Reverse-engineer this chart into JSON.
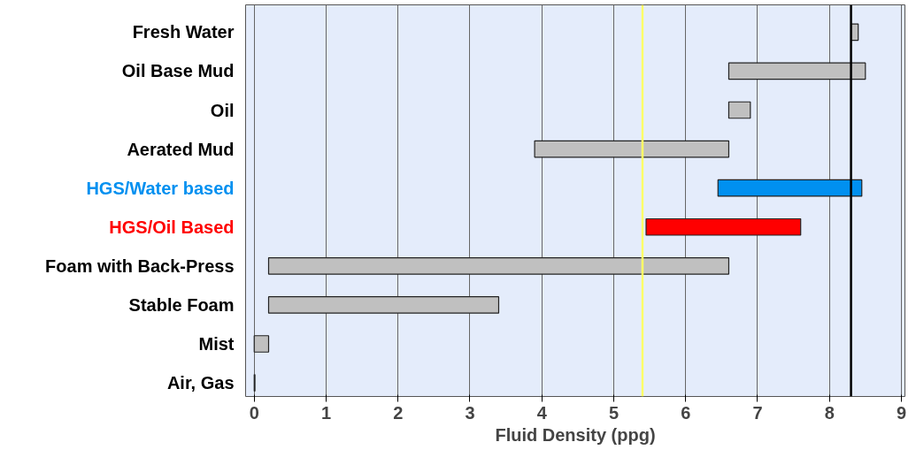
{
  "chart_data": {
    "type": "bar",
    "orientation": "horizontal",
    "xlabel": "Fluid Density (ppg)",
    "categories": [
      "Fresh Water",
      "Oil Base Mud",
      "Oil",
      "Aerated Mud",
      "HGS/Water based",
      "HGS/Oil Based",
      "Foam with Back-Press",
      "Stable Foam",
      "Mist",
      "Air, Gas"
    ],
    "base": [
      8.3,
      6.6,
      6.6,
      3.9,
      6.45,
      5.45,
      0.2,
      0.2,
      0,
      0
    ],
    "values": [
      0.1,
      1.9,
      0.3,
      2.7,
      2.0,
      2.15,
      6.4,
      3.2,
      0.2,
      0.01
    ],
    "colors": [
      "#c0c0c0",
      "#c0c0c0",
      "#c0c0c0",
      "#c0c0c0",
      "#0090f0",
      "#ff0000",
      "#c0c0c0",
      "#c0c0c0",
      "#c0c0c0",
      "#c0c0c0"
    ],
    "xlim": [
      -0.12,
      9.05
    ],
    "xticks": [
      0,
      1,
      2,
      3,
      4,
      5,
      6,
      7,
      8,
      9
    ],
    "grid": "x",
    "ref_lines": [
      {
        "axis": "x",
        "value": 5.4,
        "color": "#ffff66"
      },
      {
        "axis": "x",
        "value": 8.3,
        "color": "#000000"
      }
    ]
  }
}
